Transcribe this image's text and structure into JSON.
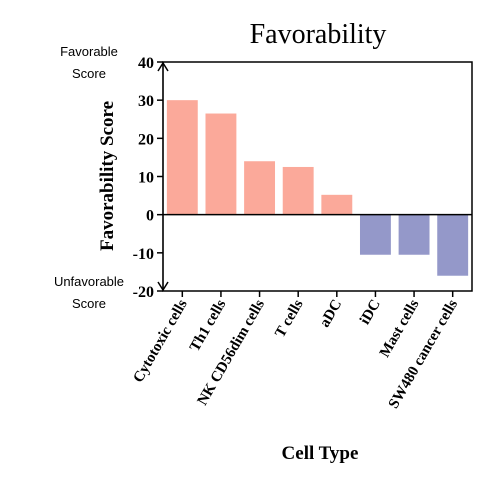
{
  "chart_data": {
    "type": "bar",
    "title": "Favorability",
    "xlabel": "Cell Type",
    "ylabel": "Favorability Score",
    "categories": [
      "Cytotoxic cells",
      "Th1 cells",
      "NK CD56dim cells",
      "T cells",
      "aDC",
      "iDC",
      "Mast cells",
      "SW480 cancer cells"
    ],
    "values": [
      30,
      26.5,
      14,
      12.5,
      5.2,
      -10.5,
      -10.5,
      -16
    ],
    "ylim": [
      -20,
      40
    ],
    "yticks": [
      "-20",
      "-10",
      "0",
      "10",
      "20",
      "30",
      "40"
    ],
    "annotations": {
      "top": [
        "Favorable",
        "Score"
      ],
      "bottom": [
        "Unfavorable",
        "Score"
      ]
    },
    "colors": {
      "positive": "#fba99a",
      "negative": "#9498c9",
      "axis": "#000000"
    },
    "grid": false,
    "legend": "none"
  }
}
